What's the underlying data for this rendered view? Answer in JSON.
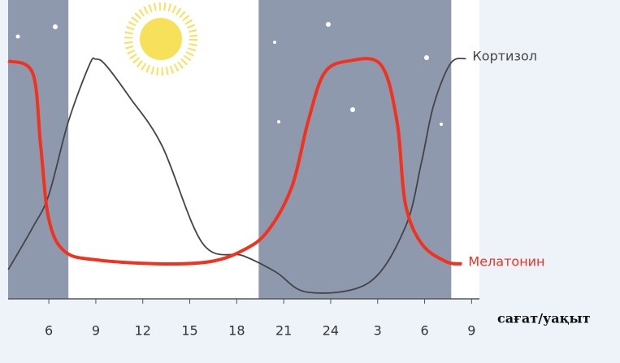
{
  "chart_data": {
    "type": "line",
    "xlabel": "сағат/уақыт",
    "xlim": [
      3.4,
      33.5
    ],
    "ylim": [
      0,
      100
    ],
    "xticks": [
      6,
      9,
      12,
      15,
      18,
      21,
      24,
      {
        "value": 27,
        "label": "3"
      },
      {
        "value": 30,
        "label": "6"
      },
      {
        "value": 33,
        "label": "9"
      }
    ],
    "night": [
      [
        3.4,
        7.25
      ],
      [
        19.4,
        31.7
      ]
    ],
    "series": [
      {
        "name": "Кортизол",
        "color": "#444444",
        "x": [
          3.41,
          4.97,
          6,
          7.24,
          8.59,
          9,
          9.62,
          11.17,
          13.24,
          15.83,
          18.42,
          20.49,
          22.55,
          26.43,
          28.76,
          29.8,
          30.57,
          31.66,
          32.64
        ],
        "values": [
          9.8,
          23.9,
          34.8,
          59.2,
          78.3,
          80.2,
          78.3,
          67.4,
          51.1,
          18.5,
          14.4,
          9,
          2.2,
          5.4,
          23.9,
          45.7,
          64.7,
          78.8,
          80.4
        ]
      },
      {
        "name": "Мелатонин",
        "color": "#f0321e",
        "x": [
          3.41,
          4.97,
          5.48,
          6,
          7.03,
          9.1,
          13.24,
          16.35,
          18.42,
          19.97,
          21.52,
          22.55,
          23.59,
          25.14,
          27.21,
          28.24,
          28.76,
          29.8,
          31.35,
          32.38
        ],
        "values": [
          79.6,
          75.5,
          51.1,
          26.6,
          15.8,
          13,
          11.7,
          12.5,
          16.3,
          22.6,
          37.5,
          59.2,
          75.5,
          79.6,
          78.3,
          59.2,
          32.1,
          18.5,
          12.5,
          11.7
        ]
      }
    ]
  }
}
